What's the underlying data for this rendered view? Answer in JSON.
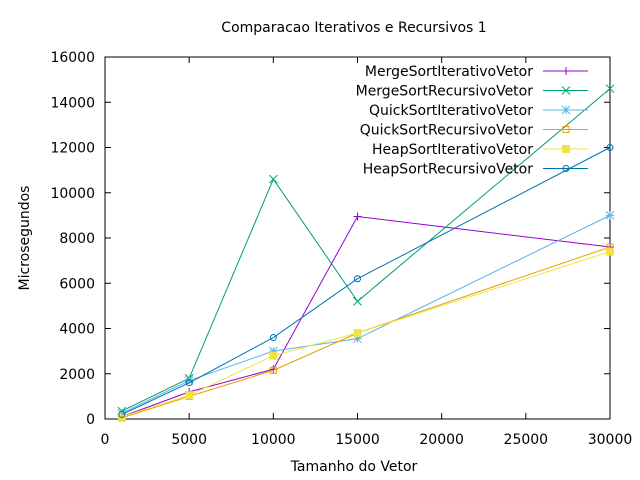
{
  "chart_data": {
    "type": "line",
    "title": "Comparacao Iterativos e Recursivos 1",
    "xlabel": "Tamanho do Vetor",
    "ylabel": "Microsegundos",
    "xlim": [
      0,
      30000
    ],
    "ylim": [
      0,
      16000
    ],
    "xticks": [
      0,
      5000,
      10000,
      15000,
      20000,
      25000,
      30000
    ],
    "yticks": [
      0,
      2000,
      4000,
      6000,
      8000,
      10000,
      12000,
      14000,
      16000
    ],
    "grid": false,
    "legend_position": "top-right",
    "series": [
      {
        "name": "MergeSortIterativoVetor",
        "color": "#9400d3",
        "marker": "plus",
        "x": [
          1000,
          5000,
          10000,
          15000,
          30000
        ],
        "y": [
          100,
          1200,
          2200,
          8950,
          7600
        ]
      },
      {
        "name": "MergeSortRecursivoVetor",
        "color": "#009e73",
        "marker": "cross",
        "x": [
          1000,
          5000,
          10000,
          15000,
          30000
        ],
        "y": [
          350,
          1800,
          10600,
          5200,
          14600
        ]
      },
      {
        "name": "QuickSortIterativoVetor",
        "color": "#56b4e9",
        "marker": "star",
        "x": [
          1000,
          5000,
          10000,
          15000,
          30000
        ],
        "y": [
          250,
          1700,
          3000,
          3550,
          9000
        ]
      },
      {
        "name": "QuickSortRecursivoVetor",
        "color": "#e69f00",
        "marker": "square",
        "x": [
          1000,
          5000,
          10000,
          15000,
          30000
        ],
        "y": [
          50,
          1000,
          2150,
          3800,
          7600
        ]
      },
      {
        "name": "HeapSortIterativoVetor",
        "color": "#f0e442",
        "marker": "filled-square",
        "x": [
          1000,
          5000,
          10000,
          15000,
          30000
        ],
        "y": [
          100,
          1050,
          2800,
          3800,
          7400
        ]
      },
      {
        "name": "HeapSortRecursivoVetor",
        "color": "#0072b2",
        "marker": "circle",
        "x": [
          1000,
          5000,
          10000,
          15000,
          30000
        ],
        "y": [
          200,
          1600,
          3600,
          6200,
          12000
        ]
      }
    ]
  }
}
